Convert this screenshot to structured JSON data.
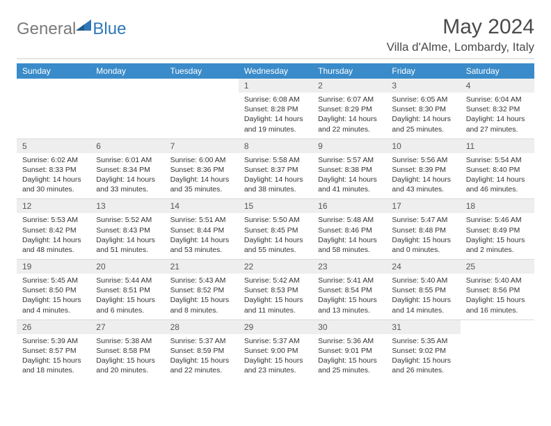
{
  "logo": {
    "text1": "General",
    "text2": "Blue",
    "color1": "#7a7a7a",
    "color2": "#2e77b8",
    "shape_color": "#2e77b8"
  },
  "title": "May 2024",
  "location": "Villa d'Alme, Lombardy, Italy",
  "header_bg": "#3a8bc9",
  "daynames": [
    "Sunday",
    "Monday",
    "Tuesday",
    "Wednesday",
    "Thursday",
    "Friday",
    "Saturday"
  ],
  "daynum_bg": "#eeeeee",
  "border_color": "#d9d9d9",
  "weeks": [
    [
      {
        "n": "",
        "empty": true
      },
      {
        "n": "",
        "empty": true
      },
      {
        "n": "",
        "empty": true
      },
      {
        "n": "1",
        "sunrise": "Sunrise: 6:08 AM",
        "sunset": "Sunset: 8:28 PM",
        "day1": "Daylight: 14 hours",
        "day2": "and 19 minutes."
      },
      {
        "n": "2",
        "sunrise": "Sunrise: 6:07 AM",
        "sunset": "Sunset: 8:29 PM",
        "day1": "Daylight: 14 hours",
        "day2": "and 22 minutes."
      },
      {
        "n": "3",
        "sunrise": "Sunrise: 6:05 AM",
        "sunset": "Sunset: 8:30 PM",
        "day1": "Daylight: 14 hours",
        "day2": "and 25 minutes."
      },
      {
        "n": "4",
        "sunrise": "Sunrise: 6:04 AM",
        "sunset": "Sunset: 8:32 PM",
        "day1": "Daylight: 14 hours",
        "day2": "and 27 minutes."
      }
    ],
    [
      {
        "n": "5",
        "sunrise": "Sunrise: 6:02 AM",
        "sunset": "Sunset: 8:33 PM",
        "day1": "Daylight: 14 hours",
        "day2": "and 30 minutes."
      },
      {
        "n": "6",
        "sunrise": "Sunrise: 6:01 AM",
        "sunset": "Sunset: 8:34 PM",
        "day1": "Daylight: 14 hours",
        "day2": "and 33 minutes."
      },
      {
        "n": "7",
        "sunrise": "Sunrise: 6:00 AM",
        "sunset": "Sunset: 8:36 PM",
        "day1": "Daylight: 14 hours",
        "day2": "and 35 minutes."
      },
      {
        "n": "8",
        "sunrise": "Sunrise: 5:58 AM",
        "sunset": "Sunset: 8:37 PM",
        "day1": "Daylight: 14 hours",
        "day2": "and 38 minutes."
      },
      {
        "n": "9",
        "sunrise": "Sunrise: 5:57 AM",
        "sunset": "Sunset: 8:38 PM",
        "day1": "Daylight: 14 hours",
        "day2": "and 41 minutes."
      },
      {
        "n": "10",
        "sunrise": "Sunrise: 5:56 AM",
        "sunset": "Sunset: 8:39 PM",
        "day1": "Daylight: 14 hours",
        "day2": "and 43 minutes."
      },
      {
        "n": "11",
        "sunrise": "Sunrise: 5:54 AM",
        "sunset": "Sunset: 8:40 PM",
        "day1": "Daylight: 14 hours",
        "day2": "and 46 minutes."
      }
    ],
    [
      {
        "n": "12",
        "sunrise": "Sunrise: 5:53 AM",
        "sunset": "Sunset: 8:42 PM",
        "day1": "Daylight: 14 hours",
        "day2": "and 48 minutes."
      },
      {
        "n": "13",
        "sunrise": "Sunrise: 5:52 AM",
        "sunset": "Sunset: 8:43 PM",
        "day1": "Daylight: 14 hours",
        "day2": "and 51 minutes."
      },
      {
        "n": "14",
        "sunrise": "Sunrise: 5:51 AM",
        "sunset": "Sunset: 8:44 PM",
        "day1": "Daylight: 14 hours",
        "day2": "and 53 minutes."
      },
      {
        "n": "15",
        "sunrise": "Sunrise: 5:50 AM",
        "sunset": "Sunset: 8:45 PM",
        "day1": "Daylight: 14 hours",
        "day2": "and 55 minutes."
      },
      {
        "n": "16",
        "sunrise": "Sunrise: 5:48 AM",
        "sunset": "Sunset: 8:46 PM",
        "day1": "Daylight: 14 hours",
        "day2": "and 58 minutes."
      },
      {
        "n": "17",
        "sunrise": "Sunrise: 5:47 AM",
        "sunset": "Sunset: 8:48 PM",
        "day1": "Daylight: 15 hours",
        "day2": "and 0 minutes."
      },
      {
        "n": "18",
        "sunrise": "Sunrise: 5:46 AM",
        "sunset": "Sunset: 8:49 PM",
        "day1": "Daylight: 15 hours",
        "day2": "and 2 minutes."
      }
    ],
    [
      {
        "n": "19",
        "sunrise": "Sunrise: 5:45 AM",
        "sunset": "Sunset: 8:50 PM",
        "day1": "Daylight: 15 hours",
        "day2": "and 4 minutes."
      },
      {
        "n": "20",
        "sunrise": "Sunrise: 5:44 AM",
        "sunset": "Sunset: 8:51 PM",
        "day1": "Daylight: 15 hours",
        "day2": "and 6 minutes."
      },
      {
        "n": "21",
        "sunrise": "Sunrise: 5:43 AM",
        "sunset": "Sunset: 8:52 PM",
        "day1": "Daylight: 15 hours",
        "day2": "and 8 minutes."
      },
      {
        "n": "22",
        "sunrise": "Sunrise: 5:42 AM",
        "sunset": "Sunset: 8:53 PM",
        "day1": "Daylight: 15 hours",
        "day2": "and 11 minutes."
      },
      {
        "n": "23",
        "sunrise": "Sunrise: 5:41 AM",
        "sunset": "Sunset: 8:54 PM",
        "day1": "Daylight: 15 hours",
        "day2": "and 13 minutes."
      },
      {
        "n": "24",
        "sunrise": "Sunrise: 5:40 AM",
        "sunset": "Sunset: 8:55 PM",
        "day1": "Daylight: 15 hours",
        "day2": "and 14 minutes."
      },
      {
        "n": "25",
        "sunrise": "Sunrise: 5:40 AM",
        "sunset": "Sunset: 8:56 PM",
        "day1": "Daylight: 15 hours",
        "day2": "and 16 minutes."
      }
    ],
    [
      {
        "n": "26",
        "sunrise": "Sunrise: 5:39 AM",
        "sunset": "Sunset: 8:57 PM",
        "day1": "Daylight: 15 hours",
        "day2": "and 18 minutes."
      },
      {
        "n": "27",
        "sunrise": "Sunrise: 5:38 AM",
        "sunset": "Sunset: 8:58 PM",
        "day1": "Daylight: 15 hours",
        "day2": "and 20 minutes."
      },
      {
        "n": "28",
        "sunrise": "Sunrise: 5:37 AM",
        "sunset": "Sunset: 8:59 PM",
        "day1": "Daylight: 15 hours",
        "day2": "and 22 minutes."
      },
      {
        "n": "29",
        "sunrise": "Sunrise: 5:37 AM",
        "sunset": "Sunset: 9:00 PM",
        "day1": "Daylight: 15 hours",
        "day2": "and 23 minutes."
      },
      {
        "n": "30",
        "sunrise": "Sunrise: 5:36 AM",
        "sunset": "Sunset: 9:01 PM",
        "day1": "Daylight: 15 hours",
        "day2": "and 25 minutes."
      },
      {
        "n": "31",
        "sunrise": "Sunrise: 5:35 AM",
        "sunset": "Sunset: 9:02 PM",
        "day1": "Daylight: 15 hours",
        "day2": "and 26 minutes."
      },
      {
        "n": "",
        "empty": true
      }
    ]
  ]
}
